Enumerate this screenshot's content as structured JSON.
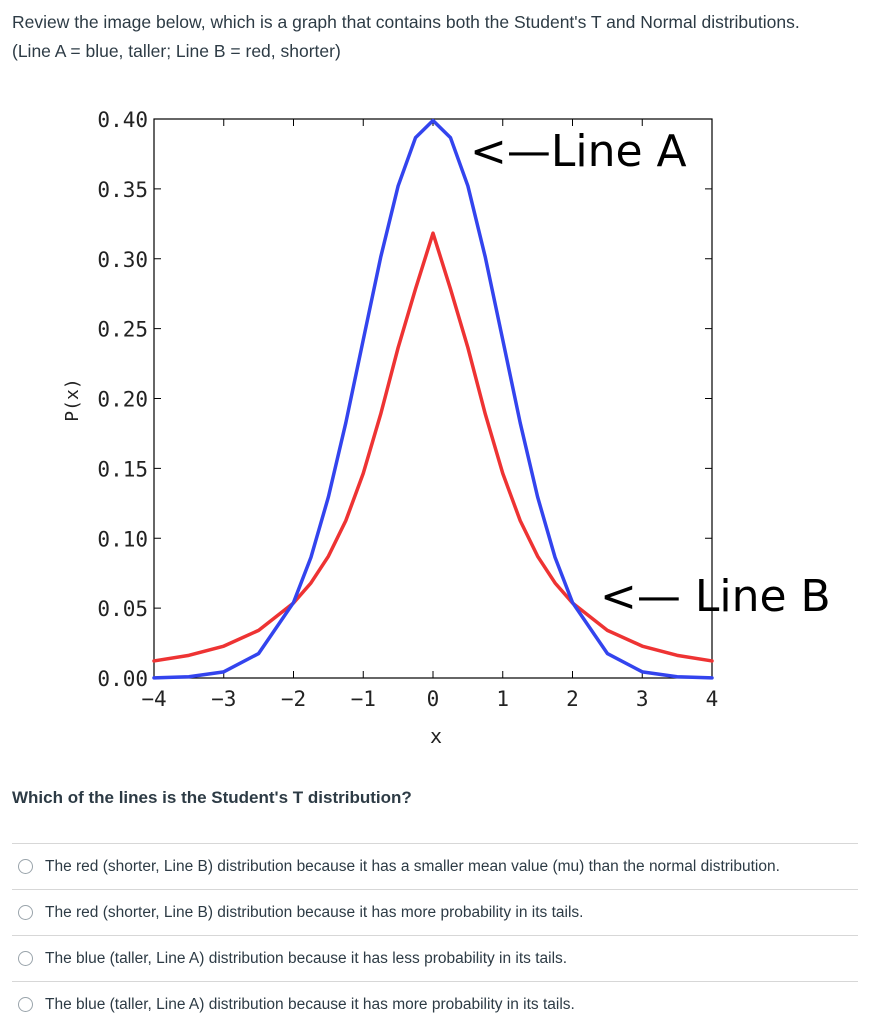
{
  "intro_text": "Review the image below, which is a graph that contains both the Student's T and Normal distributions. (Line A = blue, taller; Line B = red, shorter)",
  "question": "Which of the lines is the Student's T distribution?",
  "answers": [
    "The red (shorter, Line B) distribution because it has a smaller mean value (mu) than the normal distribution.",
    "The red (shorter, Line B) distribution because it has more probability in its tails.",
    "The blue (taller, Line A) distribution because it has less probability in its tails.",
    "The blue (taller, Line A) distribution because it has more probability in its tails."
  ],
  "chart_data": {
    "type": "line",
    "xlabel": "x",
    "ylabel": "P(x)",
    "xlim": [
      -4,
      4
    ],
    "ylim": [
      0,
      0.4
    ],
    "x_ticks": [
      "−4",
      "−3",
      "−2",
      "−1",
      "0",
      "1",
      "2",
      "3",
      "4"
    ],
    "y_ticks": [
      "0.00",
      "0.05",
      "0.10",
      "0.15",
      "0.20",
      "0.25",
      "0.30",
      "0.35",
      "0.40"
    ],
    "grid": false,
    "annotations": [
      "<—Line A",
      "<— Line B"
    ],
    "series": [
      {
        "color": "#3344ee",
        "x": [
          -4,
          -3.5,
          -3,
          -2.5,
          -2,
          -1.75,
          -1.5,
          -1.25,
          -1,
          -0.75,
          -0.5,
          -0.25,
          0,
          0.25,
          0.5,
          0.75,
          1,
          1.25,
          1.5,
          1.75,
          2,
          2.5,
          3,
          3.5,
          4
        ],
        "y": [
          0.0001,
          0.0009,
          0.0044,
          0.0175,
          0.054,
          0.0863,
          0.1295,
          0.1826,
          0.242,
          0.3011,
          0.3521,
          0.3867,
          0.3989,
          0.3867,
          0.3521,
          0.3011,
          0.242,
          0.1826,
          0.1295,
          0.0863,
          0.054,
          0.0175,
          0.0044,
          0.0009,
          0.0001
        ]
      },
      {
        "color": "#ee3333",
        "x": [
          -4,
          -3.5,
          -3,
          -2.5,
          -2,
          -1.75,
          -1.5,
          -1.25,
          -1,
          -0.75,
          -0.5,
          -0.25,
          0,
          0.25,
          0.5,
          0.75,
          1,
          1.25,
          1.5,
          1.75,
          2,
          2.5,
          3,
          3.5,
          4
        ],
        "y": [
          0.0122,
          0.0162,
          0.0228,
          0.0341,
          0.0537,
          0.068,
          0.0871,
          0.1126,
          0.1464,
          0.1888,
          0.2364,
          0.2785,
          0.3183,
          0.2785,
          0.2364,
          0.1888,
          0.1464,
          0.1126,
          0.0871,
          0.068,
          0.0537,
          0.0341,
          0.0228,
          0.0162,
          0.0122
        ]
      }
    ]
  }
}
